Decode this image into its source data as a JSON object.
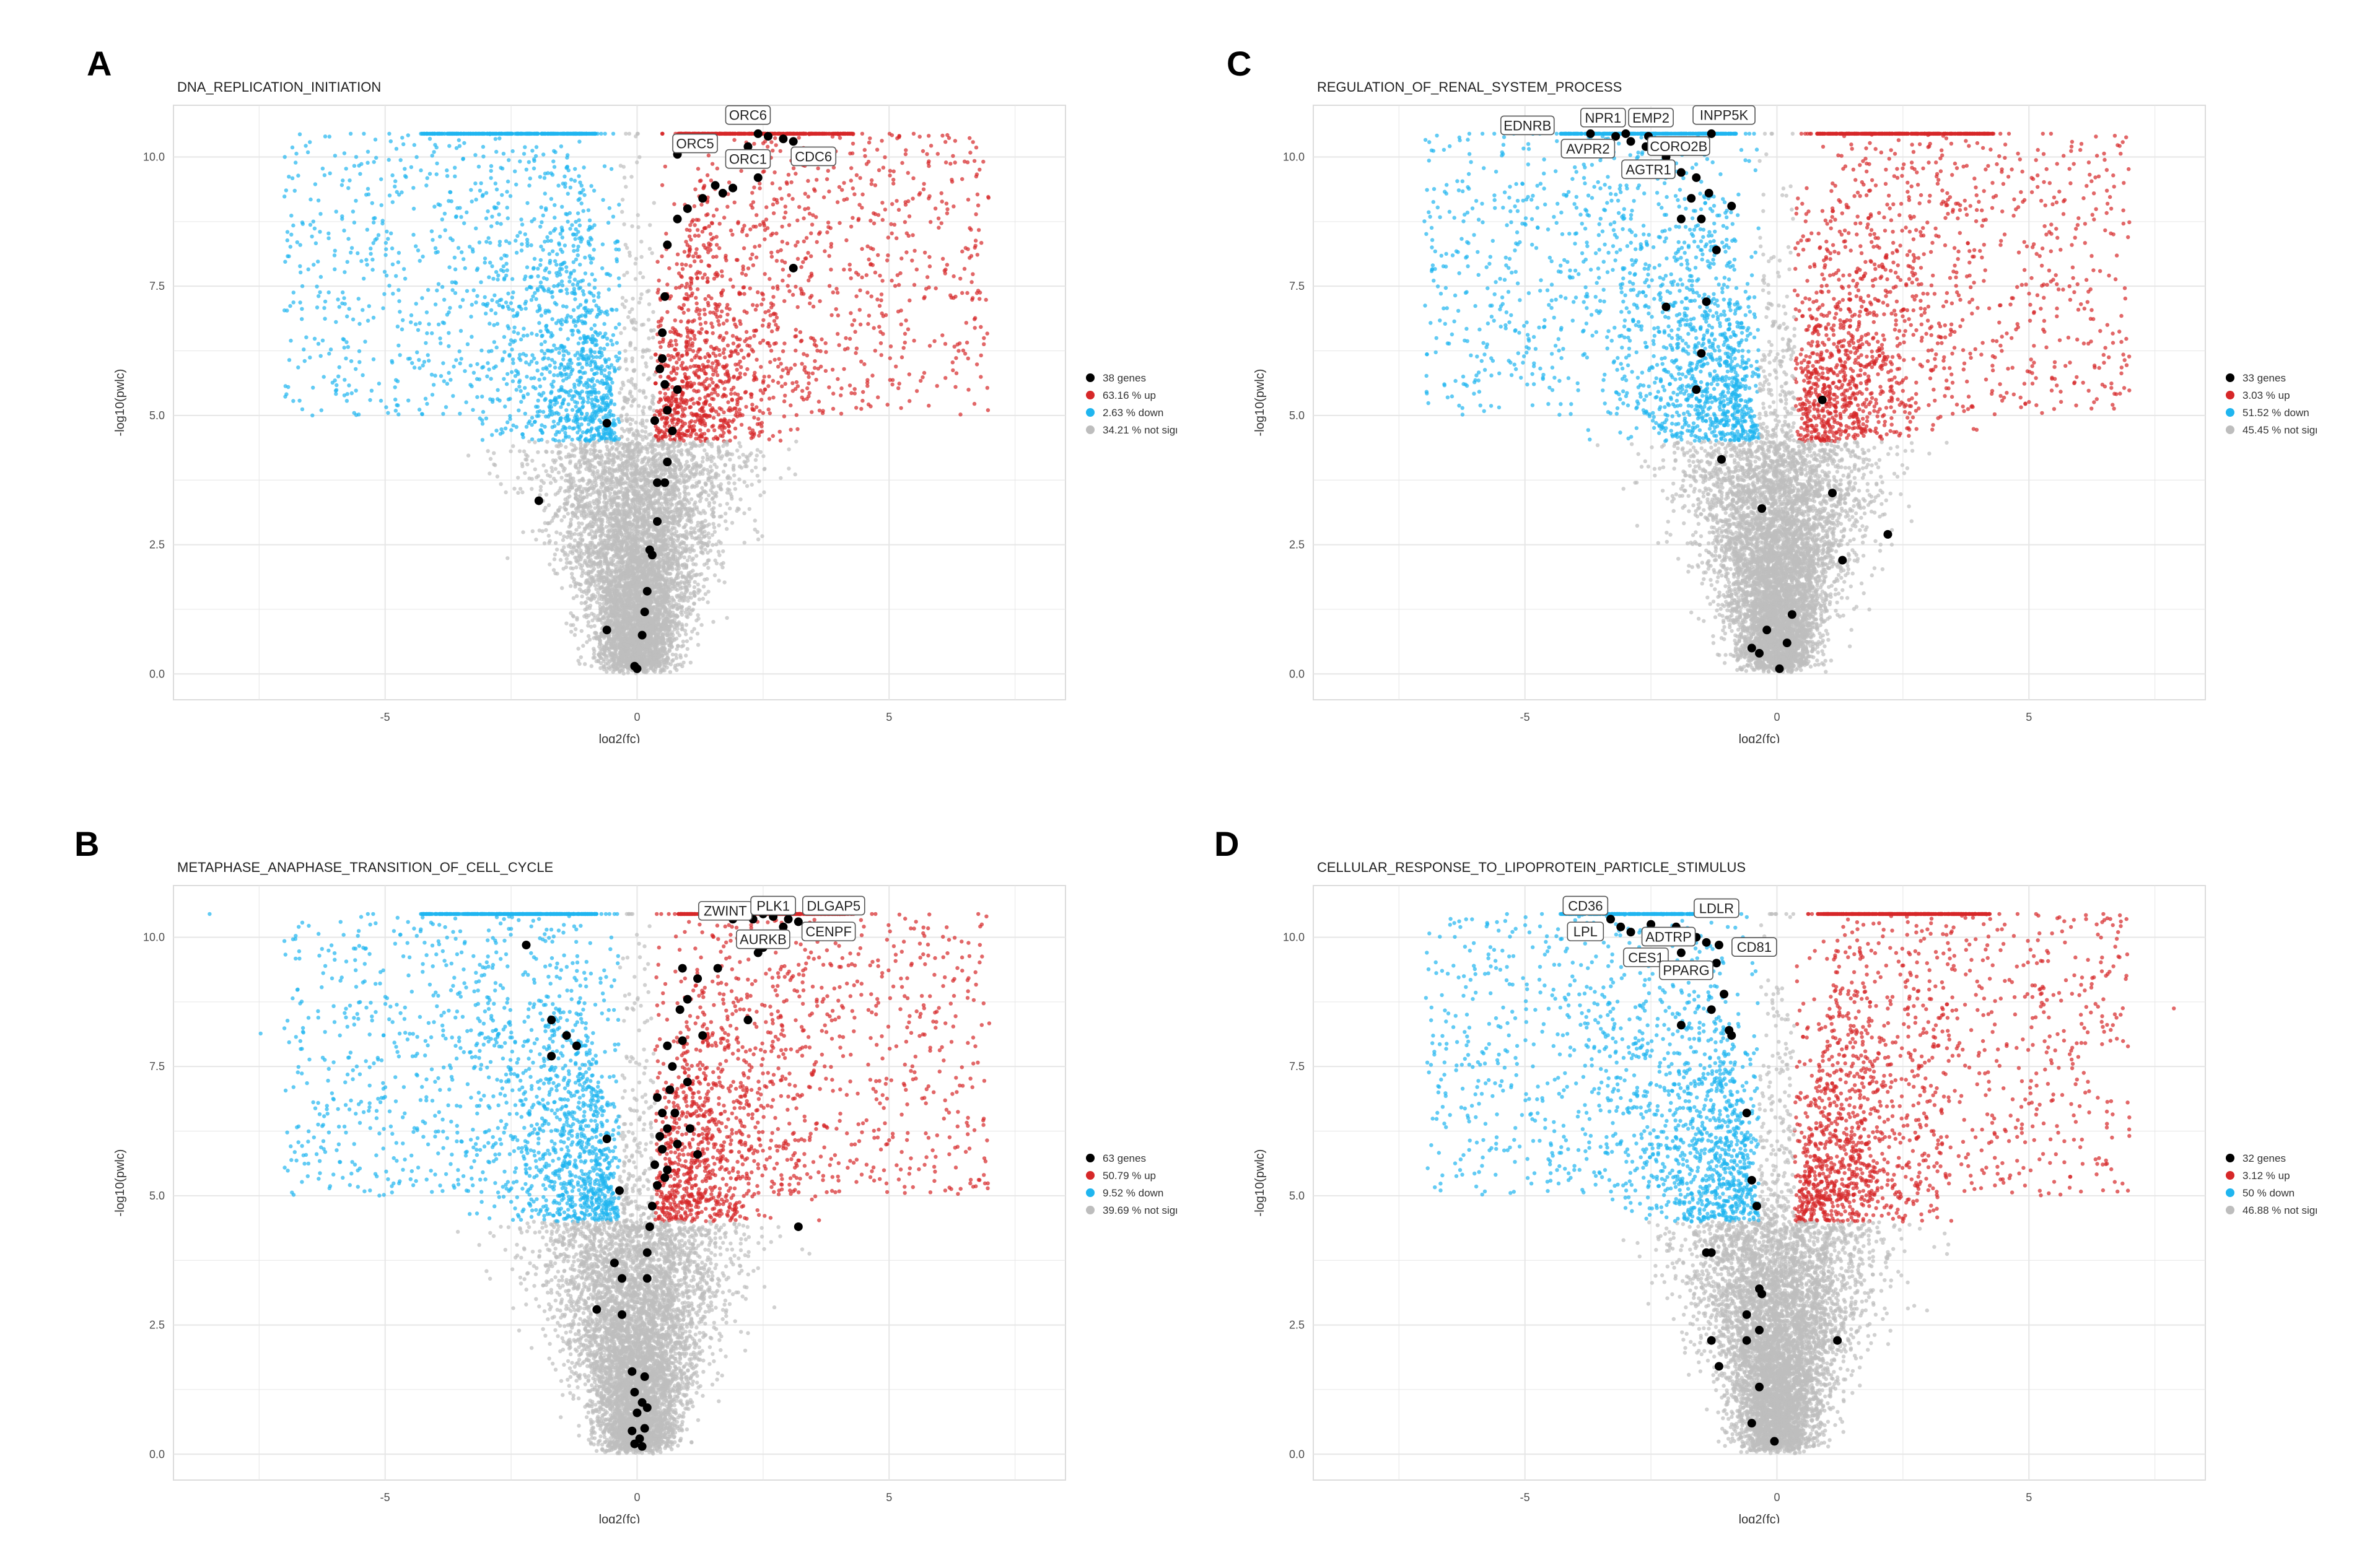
{
  "colors": {
    "up": "#d62728",
    "down": "#1fb5ef",
    "not_sign": "#bdbdbd",
    "gene": "#000000",
    "grid": "#e6e6e6",
    "axis_text": "#4d4d4d"
  },
  "chart_data": [
    {
      "panel": "A",
      "type": "scatter",
      "title": "DNA_REPLICATION_INITIATION",
      "xlabel": "log2(fc)",
      "ylabel": "-log10(pwlc)",
      "xlim": [
        -9.2,
        8.5
      ],
      "ylim": [
        -0.5,
        11.0
      ],
      "x_ticks": [
        -5,
        0,
        5
      ],
      "x_tick_labels": [
        "-5",
        "0",
        "5"
      ],
      "y_ticks": [
        0,
        2.5,
        5,
        7.5,
        10
      ],
      "y_tick_labels": [
        "0.0",
        "2.5",
        "5.0",
        "7.5",
        "10.0"
      ],
      "grid": true,
      "legend_placement": "right",
      "legend": [
        {
          "key": "genes",
          "label": "38 genes"
        },
        {
          "key": "up",
          "label": "63.16 % up"
        },
        {
          "key": "down",
          "label": "2.63 % down"
        },
        {
          "key": "not_sign",
          "label": "34.21 % not sign"
        }
      ],
      "background": {
        "left_edge": -3.0,
        "right_edge": 3.5,
        "threshold": 4.5,
        "up_density": 1.0,
        "down_density": 1.0
      },
      "gene_points": [
        {
          "x": 2.4,
          "y": 10.45,
          "label": "ORC6"
        },
        {
          "x": 2.6,
          "y": 10.4
        },
        {
          "x": 2.9,
          "y": 10.35
        },
        {
          "x": 3.1,
          "y": 10.3,
          "label": "CDC6"
        },
        {
          "x": 0.8,
          "y": 10.05,
          "label": "ORC5"
        },
        {
          "x": 2.2,
          "y": 10.2,
          "label": "ORC1"
        },
        {
          "x": 2.4,
          "y": 9.6
        },
        {
          "x": 1.9,
          "y": 9.4
        },
        {
          "x": 1.7,
          "y": 9.3
        },
        {
          "x": 1.3,
          "y": 9.2
        },
        {
          "x": 1.0,
          "y": 9.0
        },
        {
          "x": 0.8,
          "y": 8.8
        },
        {
          "x": 0.6,
          "y": 8.3
        },
        {
          "x": 0.55,
          "y": 7.3
        },
        {
          "x": 0.5,
          "y": 6.6
        },
        {
          "x": 0.5,
          "y": 6.1
        },
        {
          "x": 0.55,
          "y": 5.6
        },
        {
          "x": 0.8,
          "y": 5.5
        },
        {
          "x": 0.6,
          "y": 5.1
        },
        {
          "x": 0.7,
          "y": 4.7
        },
        {
          "x": 0.6,
          "y": 4.1
        },
        {
          "x": 0.4,
          "y": 3.7
        },
        {
          "x": 0.55,
          "y": 3.7
        },
        {
          "x": 0.4,
          "y": 2.95
        },
        {
          "x": 0.25,
          "y": 2.4
        },
        {
          "x": 0.3,
          "y": 2.3
        },
        {
          "x": 0.2,
          "y": 1.6
        },
        {
          "x": 0.15,
          "y": 1.2
        },
        {
          "x": 0.1,
          "y": 0.75
        },
        {
          "x": -0.05,
          "y": 0.15
        },
        {
          "x": 0.0,
          "y": 0.1
        },
        {
          "x": -0.6,
          "y": 4.85
        },
        {
          "x": -1.95,
          "y": 3.35
        },
        {
          "x": -0.6,
          "y": 0.85
        },
        {
          "x": 3.1,
          "y": 7.85
        },
        {
          "x": 0.35,
          "y": 4.9
        },
        {
          "x": 1.55,
          "y": 9.45
        },
        {
          "x": 0.45,
          "y": 5.9
        }
      ],
      "labels": [
        {
          "text": "ORC6",
          "x": 2.2,
          "y": 10.8
        },
        {
          "text": "ORC5",
          "x": 1.15,
          "y": 10.25
        },
        {
          "text": "ORC1",
          "x": 2.2,
          "y": 9.95
        },
        {
          "text": "CDC6",
          "x": 3.5,
          "y": 10.0
        }
      ]
    },
    {
      "panel": "C",
      "type": "scatter",
      "title": "REGULATION_OF_RENAL_SYSTEM_PROCESS",
      "xlabel": "log2(fc)",
      "ylabel": "-log10(pwlc)",
      "xlim": [
        -9.2,
        8.5
      ],
      "ylim": [
        -0.5,
        11.0
      ],
      "x_ticks": [
        -5,
        0,
        5
      ],
      "x_tick_labels": [
        "-5",
        "0",
        "5"
      ],
      "y_ticks": [
        0,
        2.5,
        5,
        7.5,
        10
      ],
      "y_tick_labels": [
        "0.0",
        "2.5",
        "5.0",
        "7.5",
        "10.0"
      ],
      "grid": true,
      "legend_placement": "right",
      "legend": [
        {
          "key": "genes",
          "label": "33 genes"
        },
        {
          "key": "up",
          "label": "3.03 % up"
        },
        {
          "key": "down",
          "label": "51.52 % down"
        },
        {
          "key": "not_sign",
          "label": "45.45 % not sign"
        }
      ],
      "background": {
        "left_edge": -3.3,
        "right_edge": 3.5,
        "threshold": 4.5,
        "up_density": 1.0,
        "down_density": 1.1
      },
      "gene_points": [
        {
          "x": -3.7,
          "y": 10.45,
          "label": "EDNRB"
        },
        {
          "x": -3.2,
          "y": 10.4
        },
        {
          "x": -3.0,
          "y": 10.45,
          "label": "NPR1"
        },
        {
          "x": -2.55,
          "y": 10.4,
          "label": "EMP2"
        },
        {
          "x": -1.3,
          "y": 10.45,
          "label": "INPP5K"
        },
        {
          "x": -2.9,
          "y": 10.3,
          "label": "AVPR2"
        },
        {
          "x": -2.6,
          "y": 10.2
        },
        {
          "x": -2.35,
          "y": 10.3,
          "label": "CORO2B"
        },
        {
          "x": -2.2,
          "y": 10.0
        },
        {
          "x": -1.9,
          "y": 9.7,
          "label": "AGTR1"
        },
        {
          "x": -1.6,
          "y": 9.6
        },
        {
          "x": -1.35,
          "y": 9.3
        },
        {
          "x": -1.7,
          "y": 9.2
        },
        {
          "x": -0.9,
          "y": 9.05
        },
        {
          "x": -1.5,
          "y": 8.8
        },
        {
          "x": -1.9,
          "y": 8.8
        },
        {
          "x": -1.2,
          "y": 8.2
        },
        {
          "x": -1.4,
          "y": 7.2
        },
        {
          "x": -2.2,
          "y": 7.1
        },
        {
          "x": -1.5,
          "y": 6.2
        },
        {
          "x": -1.6,
          "y": 5.5
        },
        {
          "x": 0.9,
          "y": 5.3
        },
        {
          "x": -1.1,
          "y": 4.15
        },
        {
          "x": 1.1,
          "y": 3.5
        },
        {
          "x": -0.3,
          "y": 3.2
        },
        {
          "x": 2.2,
          "y": 2.7
        },
        {
          "x": 1.3,
          "y": 2.2
        },
        {
          "x": 0.3,
          "y": 1.15
        },
        {
          "x": -0.2,
          "y": 0.85
        },
        {
          "x": 0.2,
          "y": 0.6
        },
        {
          "x": -0.5,
          "y": 0.5
        },
        {
          "x": -0.35,
          "y": 0.4
        },
        {
          "x": 0.05,
          "y": 0.1
        }
      ],
      "labels": [
        {
          "text": "EDNRB",
          "x": -4.95,
          "y": 10.6
        },
        {
          "text": "NPR1",
          "x": -3.45,
          "y": 10.75
        },
        {
          "text": "EMP2",
          "x": -2.5,
          "y": 10.75
        },
        {
          "text": "INPP5K",
          "x": -1.05,
          "y": 10.8
        },
        {
          "text": "AVPR2",
          "x": -3.75,
          "y": 10.15
        },
        {
          "text": "CORO2B",
          "x": -1.95,
          "y": 10.2
        },
        {
          "text": "AGTR1",
          "x": -2.55,
          "y": 9.75
        }
      ]
    },
    {
      "panel": "B",
      "type": "scatter",
      "title": "METAPHASE_ANAPHASE_TRANSITION_OF_CELL_CYCLE",
      "xlabel": "log2(fc)",
      "ylabel": "-log10(pwlc)",
      "xlim": [
        -9.2,
        8.5
      ],
      "ylim": [
        -0.5,
        11.0
      ],
      "x_ticks": [
        -5,
        0,
        5
      ],
      "x_tick_labels": [
        "-5",
        "0",
        "5"
      ],
      "y_ticks": [
        0,
        2.5,
        5,
        7.5,
        10
      ],
      "y_tick_labels": [
        "0.0",
        "2.5",
        "5.0",
        "7.5",
        "10.0"
      ],
      "grid": true,
      "legend_placement": "right",
      "legend": [
        {
          "key": "genes",
          "label": "63 genes"
        },
        {
          "key": "up",
          "label": "50.79 % up"
        },
        {
          "key": "down",
          "label": "9.52 % down"
        },
        {
          "key": "not_sign",
          "label": "39.69 % not sign"
        }
      ],
      "background": {
        "left_edge": -3.0,
        "right_edge": 3.5,
        "threshold": 4.5,
        "up_density": 1.0,
        "down_density": 1.0
      },
      "gene_points": [
        {
          "x": 2.3,
          "y": 10.35,
          "label": "ZWINT"
        },
        {
          "x": 2.5,
          "y": 10.45
        },
        {
          "x": 2.7,
          "y": 10.4,
          "label": "PLK1"
        },
        {
          "x": 3.0,
          "y": 10.35
        },
        {
          "x": 3.2,
          "y": 10.3,
          "label": "DLGAP5"
        },
        {
          "x": 2.9,
          "y": 10.2,
          "label": "CENPF"
        },
        {
          "x": 2.3,
          "y": 10.0
        },
        {
          "x": 2.5,
          "y": 9.8,
          "label": "AURKB"
        },
        {
          "x": 2.4,
          "y": 9.7
        },
        {
          "x": 1.6,
          "y": 9.4
        },
        {
          "x": 1.2,
          "y": 9.2
        },
        {
          "x": 0.9,
          "y": 9.4
        },
        {
          "x": 1.0,
          "y": 8.8
        },
        {
          "x": 1.3,
          "y": 8.1
        },
        {
          "x": 2.2,
          "y": 8.4
        },
        {
          "x": 0.9,
          "y": 8.0
        },
        {
          "x": 0.6,
          "y": 7.9
        },
        {
          "x": 0.7,
          "y": 7.5
        },
        {
          "x": 1.0,
          "y": 7.2
        },
        {
          "x": 0.4,
          "y": 6.9
        },
        {
          "x": 0.5,
          "y": 6.6
        },
        {
          "x": 0.6,
          "y": 6.3
        },
        {
          "x": 0.8,
          "y": 6.0
        },
        {
          "x": 0.5,
          "y": 5.9
        },
        {
          "x": 1.2,
          "y": 5.8
        },
        {
          "x": 0.6,
          "y": 5.5
        },
        {
          "x": 0.4,
          "y": 5.2
        },
        {
          "x": 0.3,
          "y": 4.8
        },
        {
          "x": 0.25,
          "y": 4.4
        },
        {
          "x": 0.2,
          "y": 3.9
        },
        {
          "x": 0.2,
          "y": 3.4
        },
        {
          "x": 3.2,
          "y": 4.4
        },
        {
          "x": -2.2,
          "y": 9.85
        },
        {
          "x": -1.7,
          "y": 8.4
        },
        {
          "x": -1.4,
          "y": 8.1
        },
        {
          "x": -1.7,
          "y": 7.7
        },
        {
          "x": -1.2,
          "y": 7.9
        },
        {
          "x": -0.6,
          "y": 6.1
        },
        {
          "x": -0.35,
          "y": 5.1
        },
        {
          "x": -0.45,
          "y": 3.7
        },
        {
          "x": -0.3,
          "y": 3.4
        },
        {
          "x": -0.8,
          "y": 2.8
        },
        {
          "x": -0.3,
          "y": 2.7
        },
        {
          "x": -0.1,
          "y": 1.6
        },
        {
          "x": 0.15,
          "y": 1.5
        },
        {
          "x": -0.05,
          "y": 1.2
        },
        {
          "x": 0.1,
          "y": 1.0
        },
        {
          "x": 0.2,
          "y": 0.9
        },
        {
          "x": 0.0,
          "y": 0.8
        },
        {
          "x": 0.15,
          "y": 0.5
        },
        {
          "x": -0.1,
          "y": 0.45
        },
        {
          "x": 0.05,
          "y": 0.3
        },
        {
          "x": -0.05,
          "y": 0.2
        },
        {
          "x": 0.1,
          "y": 0.15
        },
        {
          "x": 0.85,
          "y": 8.6
        },
        {
          "x": 1.05,
          "y": 6.3
        },
        {
          "x": 0.75,
          "y": 6.6
        },
        {
          "x": 1.9,
          "y": 10.35
        },
        {
          "x": 0.45,
          "y": 6.15
        },
        {
          "x": 0.35,
          "y": 5.6
        },
        {
          "x": 0.55,
          "y": 5.35
        },
        {
          "x": 2.05,
          "y": 9.95
        },
        {
          "x": 0.65,
          "y": 7.05
        }
      ],
      "labels": [
        {
          "text": "ZWINT",
          "x": 1.75,
          "y": 10.5
        },
        {
          "text": "PLK1",
          "x": 2.7,
          "y": 10.6
        },
        {
          "text": "DLGAP5",
          "x": 3.9,
          "y": 10.6
        },
        {
          "text": "AURKB",
          "x": 2.5,
          "y": 9.95
        },
        {
          "text": "CENPF",
          "x": 3.8,
          "y": 10.1
        }
      ]
    },
    {
      "panel": "D",
      "type": "scatter",
      "title": "CELLULAR_RESPONSE_TO_LIPOPROTEIN_PARTICLE_STIMULUS",
      "xlabel": "log2(fc)",
      "ylabel": "-log10(pwlc)",
      "xlim": [
        -9.2,
        8.5
      ],
      "ylim": [
        -0.5,
        11.0
      ],
      "x_ticks": [
        -5,
        0,
        5
      ],
      "x_tick_labels": [
        "-5",
        "0",
        "5"
      ],
      "y_ticks": [
        0,
        2.5,
        5,
        7.5,
        10
      ],
      "y_tick_labels": [
        "0.0",
        "2.5",
        "5.0",
        "7.5",
        "10.0"
      ],
      "grid": true,
      "legend_placement": "right",
      "legend": [
        {
          "key": "genes",
          "label": "32 genes"
        },
        {
          "key": "up",
          "label": "3.12 % up"
        },
        {
          "key": "down",
          "label": "50 % down"
        },
        {
          "key": "not_sign",
          "label": "46.88 % not sign"
        }
      ],
      "background": {
        "left_edge": -3.3,
        "right_edge": 3.5,
        "threshold": 4.5,
        "up_density": 1.0,
        "down_density": 1.1
      },
      "gene_points": [
        {
          "x": -3.3,
          "y": 10.35,
          "label": "CD36"
        },
        {
          "x": -3.1,
          "y": 10.2
        },
        {
          "x": -2.9,
          "y": 10.1,
          "label": "LPL"
        },
        {
          "x": -2.5,
          "y": 10.25,
          "label": "LDLR"
        },
        {
          "x": -2.0,
          "y": 10.2
        },
        {
          "x": -1.6,
          "y": 10.0,
          "label": "ADTRP"
        },
        {
          "x": -1.4,
          "y": 9.9
        },
        {
          "x": -1.15,
          "y": 9.85,
          "label": "CD81"
        },
        {
          "x": -1.9,
          "y": 9.7,
          "label": "CES1"
        },
        {
          "x": -1.2,
          "y": 9.5,
          "label": "PPARG"
        },
        {
          "x": -1.4,
          "y": 9.3
        },
        {
          "x": -1.05,
          "y": 8.9
        },
        {
          "x": -1.3,
          "y": 8.6
        },
        {
          "x": -1.9,
          "y": 8.3
        },
        {
          "x": -0.95,
          "y": 8.2
        },
        {
          "x": -0.9,
          "y": 8.1
        },
        {
          "x": -0.6,
          "y": 6.6
        },
        {
          "x": -0.5,
          "y": 5.3
        },
        {
          "x": -0.4,
          "y": 4.8
        },
        {
          "x": -1.3,
          "y": 3.9
        },
        {
          "x": -1.4,
          "y": 3.9
        },
        {
          "x": -0.35,
          "y": 3.2
        },
        {
          "x": -0.3,
          "y": 3.1
        },
        {
          "x": -0.6,
          "y": 2.7
        },
        {
          "x": -0.35,
          "y": 2.4
        },
        {
          "x": -0.6,
          "y": 2.2
        },
        {
          "x": -1.3,
          "y": 2.2
        },
        {
          "x": -1.15,
          "y": 1.7
        },
        {
          "x": -0.35,
          "y": 1.3
        },
        {
          "x": 1.2,
          "y": 2.2
        },
        {
          "x": -0.5,
          "y": 0.6
        },
        {
          "x": -0.05,
          "y": 0.25
        }
      ],
      "labels": [
        {
          "text": "CD36",
          "x": -3.8,
          "y": 10.6
        },
        {
          "text": "LPL",
          "x": -3.8,
          "y": 10.1
        },
        {
          "text": "LDLR",
          "x": -1.2,
          "y": 10.55
        },
        {
          "text": "ADTRP",
          "x": -2.15,
          "y": 10.0
        },
        {
          "text": "CD81",
          "x": -0.45,
          "y": 9.8
        },
        {
          "text": "CES1",
          "x": -2.6,
          "y": 9.6
        },
        {
          "text": "PPARG",
          "x": -1.8,
          "y": 9.35
        }
      ]
    }
  ]
}
